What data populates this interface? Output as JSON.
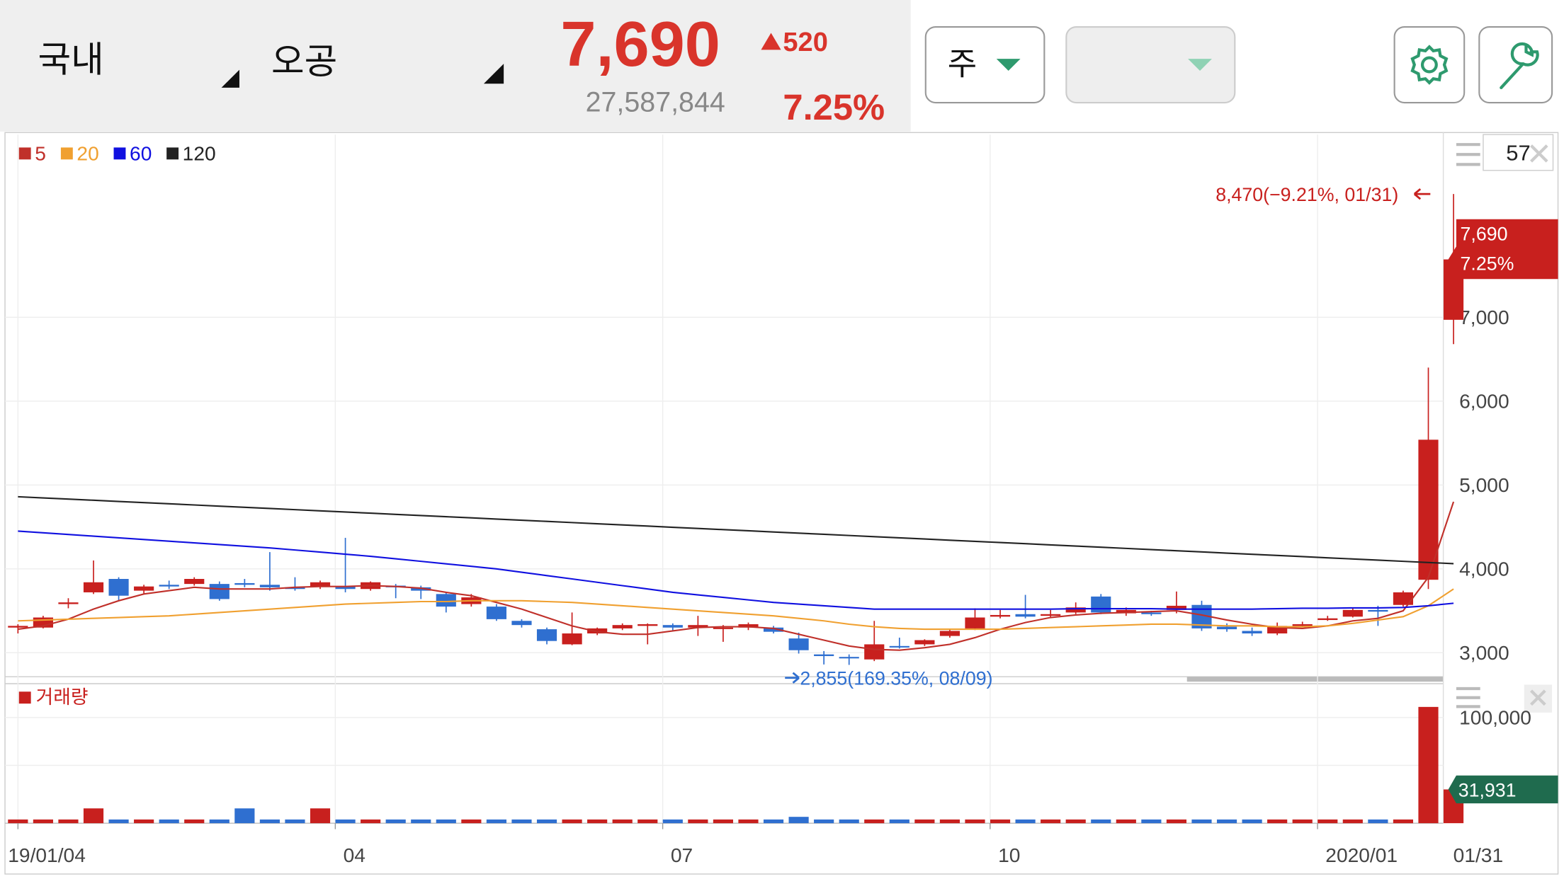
{
  "header": {
    "market": "국내",
    "stock": "오공",
    "price": "7,690",
    "change": "520",
    "volume": "27,587,844",
    "rate": "7.25%"
  },
  "controls": {
    "period": "주",
    "period_count": "57"
  },
  "chart_data": {
    "type": "candlestick",
    "open": [
      3300,
      3300,
      3580,
      3720,
      3880,
      3740,
      3810,
      3820,
      3820,
      3830,
      3810,
      3780,
      3790,
      3790,
      3760,
      3800,
      3780,
      3700,
      3580,
      3550,
      3380,
      3280,
      3100,
      3230,
      3290,
      3320,
      3330,
      3300,
      3290,
      3300,
      3300,
      3170,
      2980,
      2950,
      2920,
      3080,
      3100,
      3200,
      3290,
      3430,
      3460,
      3440,
      3480,
      3670,
      3470,
      3480,
      3510,
      3570,
      3310,
      3260,
      3230,
      3320,
      3390,
      3430,
      3510,
      3570,
      3870,
      6970
    ],
    "close": [
      3320,
      3420,
      3600,
      3840,
      3680,
      3790,
      3790,
      3880,
      3640,
      3810,
      3780,
      3760,
      3840,
      3760,
      3840,
      3780,
      3740,
      3550,
      3660,
      3400,
      3330,
      3140,
      3230,
      3290,
      3330,
      3340,
      3300,
      3330,
      3300,
      3340,
      3250,
      3030,
      2960,
      2940,
      3100,
      3070,
      3150,
      3260,
      3420,
      3450,
      3430,
      3460,
      3540,
      3480,
      3510,
      3460,
      3560,
      3290,
      3280,
      3230,
      3320,
      3340,
      3410,
      3510,
      3490,
      3720,
      5540,
      7690
    ],
    "high": [
      3340,
      3440,
      3650,
      4100,
      3900,
      3810,
      3860,
      3900,
      3850,
      3880,
      4200,
      3900,
      3860,
      4370,
      3850,
      3820,
      3800,
      3720,
      3700,
      3580,
      3400,
      3300,
      3480,
      3300,
      3350,
      3350,
      3350,
      3440,
      3330,
      3360,
      3320,
      3240,
      3020,
      2980,
      3380,
      3180,
      3160,
      3280,
      3530,
      3510,
      3690,
      3510,
      3600,
      3700,
      3540,
      3500,
      3730,
      3620,
      3350,
      3300,
      3360,
      3370,
      3440,
      3530,
      3560,
      3740,
      6400,
      8470
    ],
    "low": [
      3230,
      3290,
      3530,
      3700,
      3620,
      3700,
      3760,
      3800,
      3620,
      3780,
      3740,
      3740,
      3760,
      3720,
      3740,
      3650,
      3640,
      3480,
      3550,
      3380,
      3300,
      3100,
      3090,
      3210,
      3270,
      3100,
      3260,
      3200,
      3130,
      3270,
      3230,
      2990,
      2860,
      2855,
      2900,
      3050,
      3080,
      3180,
      3270,
      3410,
      3410,
      3420,
      3460,
      3460,
      3440,
      3440,
      3470,
      3260,
      3250,
      3200,
      3210,
      3310,
      3380,
      3420,
      3320,
      3550,
      3760,
      6680
    ],
    "up_color": "#c8201e",
    "down_color": "#2f6fd0",
    "ma": [
      {
        "name": "5",
        "color": "#c0302a",
        "values": [
          3280,
          3320,
          3400,
          3520,
          3620,
          3700,
          3740,
          3780,
          3760,
          3760,
          3760,
          3780,
          3790,
          3790,
          3800,
          3790,
          3770,
          3720,
          3680,
          3600,
          3520,
          3420,
          3320,
          3250,
          3220,
          3220,
          3260,
          3300,
          3310,
          3310,
          3290,
          3220,
          3150,
          3080,
          3040,
          3030,
          3060,
          3100,
          3180,
          3280,
          3360,
          3420,
          3450,
          3470,
          3480,
          3490,
          3500,
          3450,
          3390,
          3340,
          3300,
          3290,
          3320,
          3380,
          3410,
          3500,
          3900,
          4800
        ]
      },
      {
        "name": "20",
        "color": "#f0a030",
        "values": [
          3380,
          3390,
          3400,
          3410,
          3420,
          3430,
          3440,
          3460,
          3480,
          3500,
          3520,
          3540,
          3560,
          3580,
          3590,
          3600,
          3610,
          3610,
          3620,
          3620,
          3620,
          3610,
          3600,
          3580,
          3560,
          3540,
          3520,
          3500,
          3480,
          3460,
          3440,
          3410,
          3380,
          3340,
          3310,
          3290,
          3280,
          3280,
          3280,
          3280,
          3290,
          3300,
          3310,
          3320,
          3330,
          3340,
          3340,
          3330,
          3320,
          3320,
          3310,
          3310,
          3320,
          3350,
          3390,
          3430,
          3560,
          3760
        ]
      },
      {
        "name": "60",
        "color": "#1010e0",
        "values": [
          4450,
          4430,
          4410,
          4390,
          4370,
          4350,
          4330,
          4310,
          4290,
          4270,
          4250,
          4225,
          4200,
          4175,
          4150,
          4120,
          4090,
          4060,
          4030,
          4000,
          3960,
          3920,
          3880,
          3840,
          3800,
          3760,
          3720,
          3690,
          3660,
          3630,
          3600,
          3580,
          3560,
          3540,
          3520,
          3520,
          3520,
          3520,
          3520,
          3520,
          3520,
          3520,
          3525,
          3525,
          3525,
          3525,
          3520,
          3520,
          3520,
          3520,
          3525,
          3530,
          3530,
          3535,
          3535,
          3540,
          3560,
          3590
        ]
      },
      {
        "name": "120",
        "color": "#222222",
        "values": [
          4860,
          4846,
          4832,
          4818,
          4804,
          4790,
          4776,
          4762,
          4748,
          4734,
          4720,
          4706,
          4692,
          4678,
          4664,
          4650,
          4636,
          4622,
          4608,
          4594,
          4580,
          4566,
          4552,
          4538,
          4524,
          4510,
          4496,
          4482,
          4468,
          4454,
          4440,
          4426,
          4412,
          4398,
          4384,
          4370,
          4356,
          4342,
          4328,
          4314,
          4300,
          4286,
          4272,
          4258,
          4244,
          4230,
          4216,
          4202,
          4188,
          4174,
          4160,
          4146,
          4132,
          4118,
          4104,
          4090,
          4076,
          4062
        ]
      }
    ],
    "ylim": [
      2738,
      9179
    ],
    "yticks": [
      {
        "value": 3000,
        "label": "3,000"
      },
      {
        "value": 4000,
        "label": "4,000"
      },
      {
        "value": 5000,
        "label": "5,000"
      },
      {
        "value": 6000,
        "label": "6,000"
      },
      {
        "value": 7000,
        "label": "7,000"
      }
    ],
    "xticks": [
      {
        "value": 0,
        "label": "19/01/04"
      },
      {
        "value": 12.6,
        "label": "04"
      },
      {
        "value": 25.6,
        "label": "07"
      },
      {
        "value": 38.6,
        "label": "10"
      },
      {
        "value": 51.6,
        "label": "2020/01"
      }
    ],
    "last_date": "01/31",
    "price_tag": {
      "value": 7690,
      "label": "7,690",
      "rate": "7.25%"
    },
    "high_label": {
      "value": 8470,
      "label": "8,470(−9.21%, 01/31)"
    },
    "low_label": {
      "value": 2855,
      "label": "2,855(169.35%, 08/09)"
    },
    "volume": {
      "name": "거래량",
      "values": [
        3500,
        3500,
        3500,
        14000,
        3500,
        3500,
        3500,
        3500,
        3500,
        14000,
        3500,
        3500,
        14000,
        3500,
        3500,
        3500,
        3500,
        3500,
        3500,
        3500,
        3500,
        3500,
        3500,
        3500,
        3500,
        3500,
        3500,
        3500,
        3500,
        3500,
        3500,
        6000,
        3500,
        3500,
        3500,
        3500,
        3500,
        3500,
        3500,
        3500,
        3500,
        3500,
        3500,
        3500,
        3500,
        3500,
        3500,
        3500,
        3500,
        3500,
        3500,
        3500,
        3500,
        3500,
        3500,
        3500,
        110000,
        31931
      ],
      "ylim": [
        0,
        132000
      ],
      "yticks": [
        {
          "value": 100000,
          "label": "100,000"
        }
      ],
      "tag": {
        "value": 31931,
        "label": "31,931"
      }
    }
  }
}
